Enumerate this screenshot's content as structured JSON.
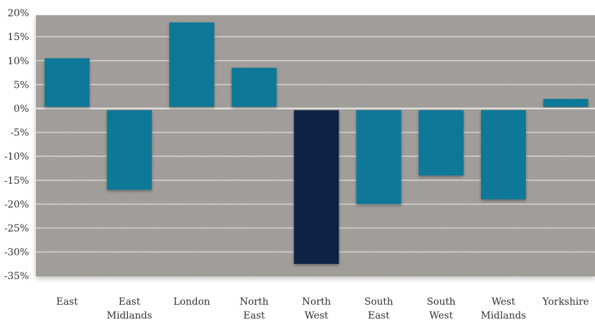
{
  "chart_data": {
    "type": "bar",
    "categories": [
      [
        "East"
      ],
      [
        "East",
        "Midlands"
      ],
      [
        "London"
      ],
      [
        "North",
        "East"
      ],
      [
        "North",
        "West"
      ],
      [
        "South",
        "East"
      ],
      [
        "South",
        "West"
      ],
      [
        "West",
        "Midlands"
      ],
      [
        "Yorkshire"
      ]
    ],
    "values": [
      10.5,
      -17,
      18,
      8.5,
      -32.5,
      -20,
      -14,
      -19,
      2
    ],
    "y_ticks": [
      "20%",
      "15%",
      "10%",
      "5%",
      "0%",
      "-5%",
      "-10%",
      "-15%",
      "-20%",
      "-25%",
      "-30%",
      "-35%"
    ],
    "ylim": [
      -35,
      20
    ],
    "grid": true,
    "title": "",
    "xlabel": "",
    "ylabel": "",
    "colors": {
      "bar": "#0f7898",
      "highlight": "#0e2244",
      "plot_background": "#a5a29e",
      "gridline": "#e6e4e0"
    },
    "highlight_index": 4
  }
}
